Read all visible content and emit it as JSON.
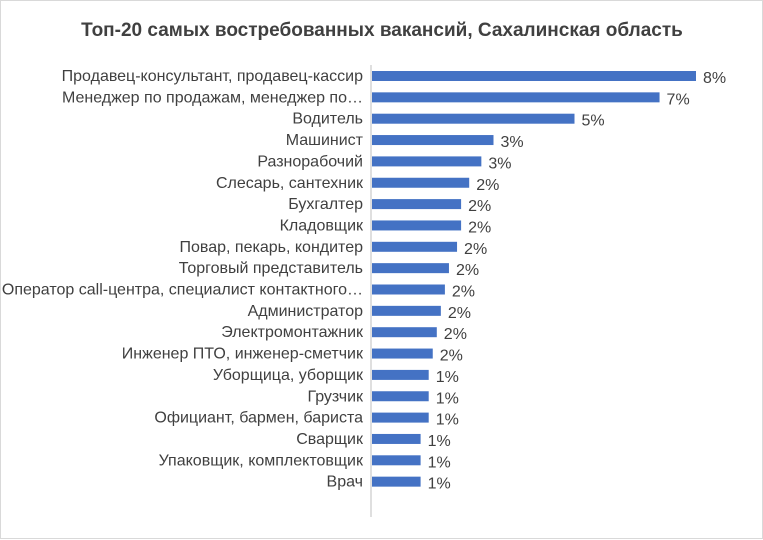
{
  "chart_data": {
    "type": "bar",
    "orientation": "horizontal",
    "title": "Топ-20 самых востребованных вакансий, Сахалинская область",
    "xlabel": "",
    "ylabel": "",
    "xlim": [
      0,
      8.5
    ],
    "grid": false,
    "legend": "none",
    "bar_color": "#4472c4",
    "categories": [
      "Продавец-консультант, продавец-кассир",
      "Менеджер по продажам, менеджер по…",
      "Водитель",
      "Машинист",
      "Разнорабочий",
      "Слесарь, сантехник",
      "Бухгалтер",
      "Кладовщик",
      "Повар, пекарь, кондитер",
      "Торговый представитель",
      "Оператор call-центра, специалист контактного…",
      "Администратор",
      "Электромонтажник",
      "Инженер ПТО, инженер-сметчик",
      "Уборщица, уборщик",
      "Грузчик",
      "Официант, бармен, бариста",
      "Сварщик",
      "Упаковщик, комплектовщик",
      "Врач"
    ],
    "values": [
      8.0,
      7.1,
      5.0,
      3.0,
      2.7,
      2.4,
      2.2,
      2.2,
      2.1,
      1.9,
      1.8,
      1.7,
      1.6,
      1.5,
      1.4,
      1.4,
      1.4,
      1.2,
      1.2,
      1.2
    ],
    "value_labels": [
      "8%",
      "7%",
      "5%",
      "3%",
      "3%",
      "2%",
      "2%",
      "2%",
      "2%",
      "2%",
      "2%",
      "2%",
      "2%",
      "2%",
      "1%",
      "1%",
      "1%",
      "1%",
      "1%",
      "1%"
    ]
  }
}
